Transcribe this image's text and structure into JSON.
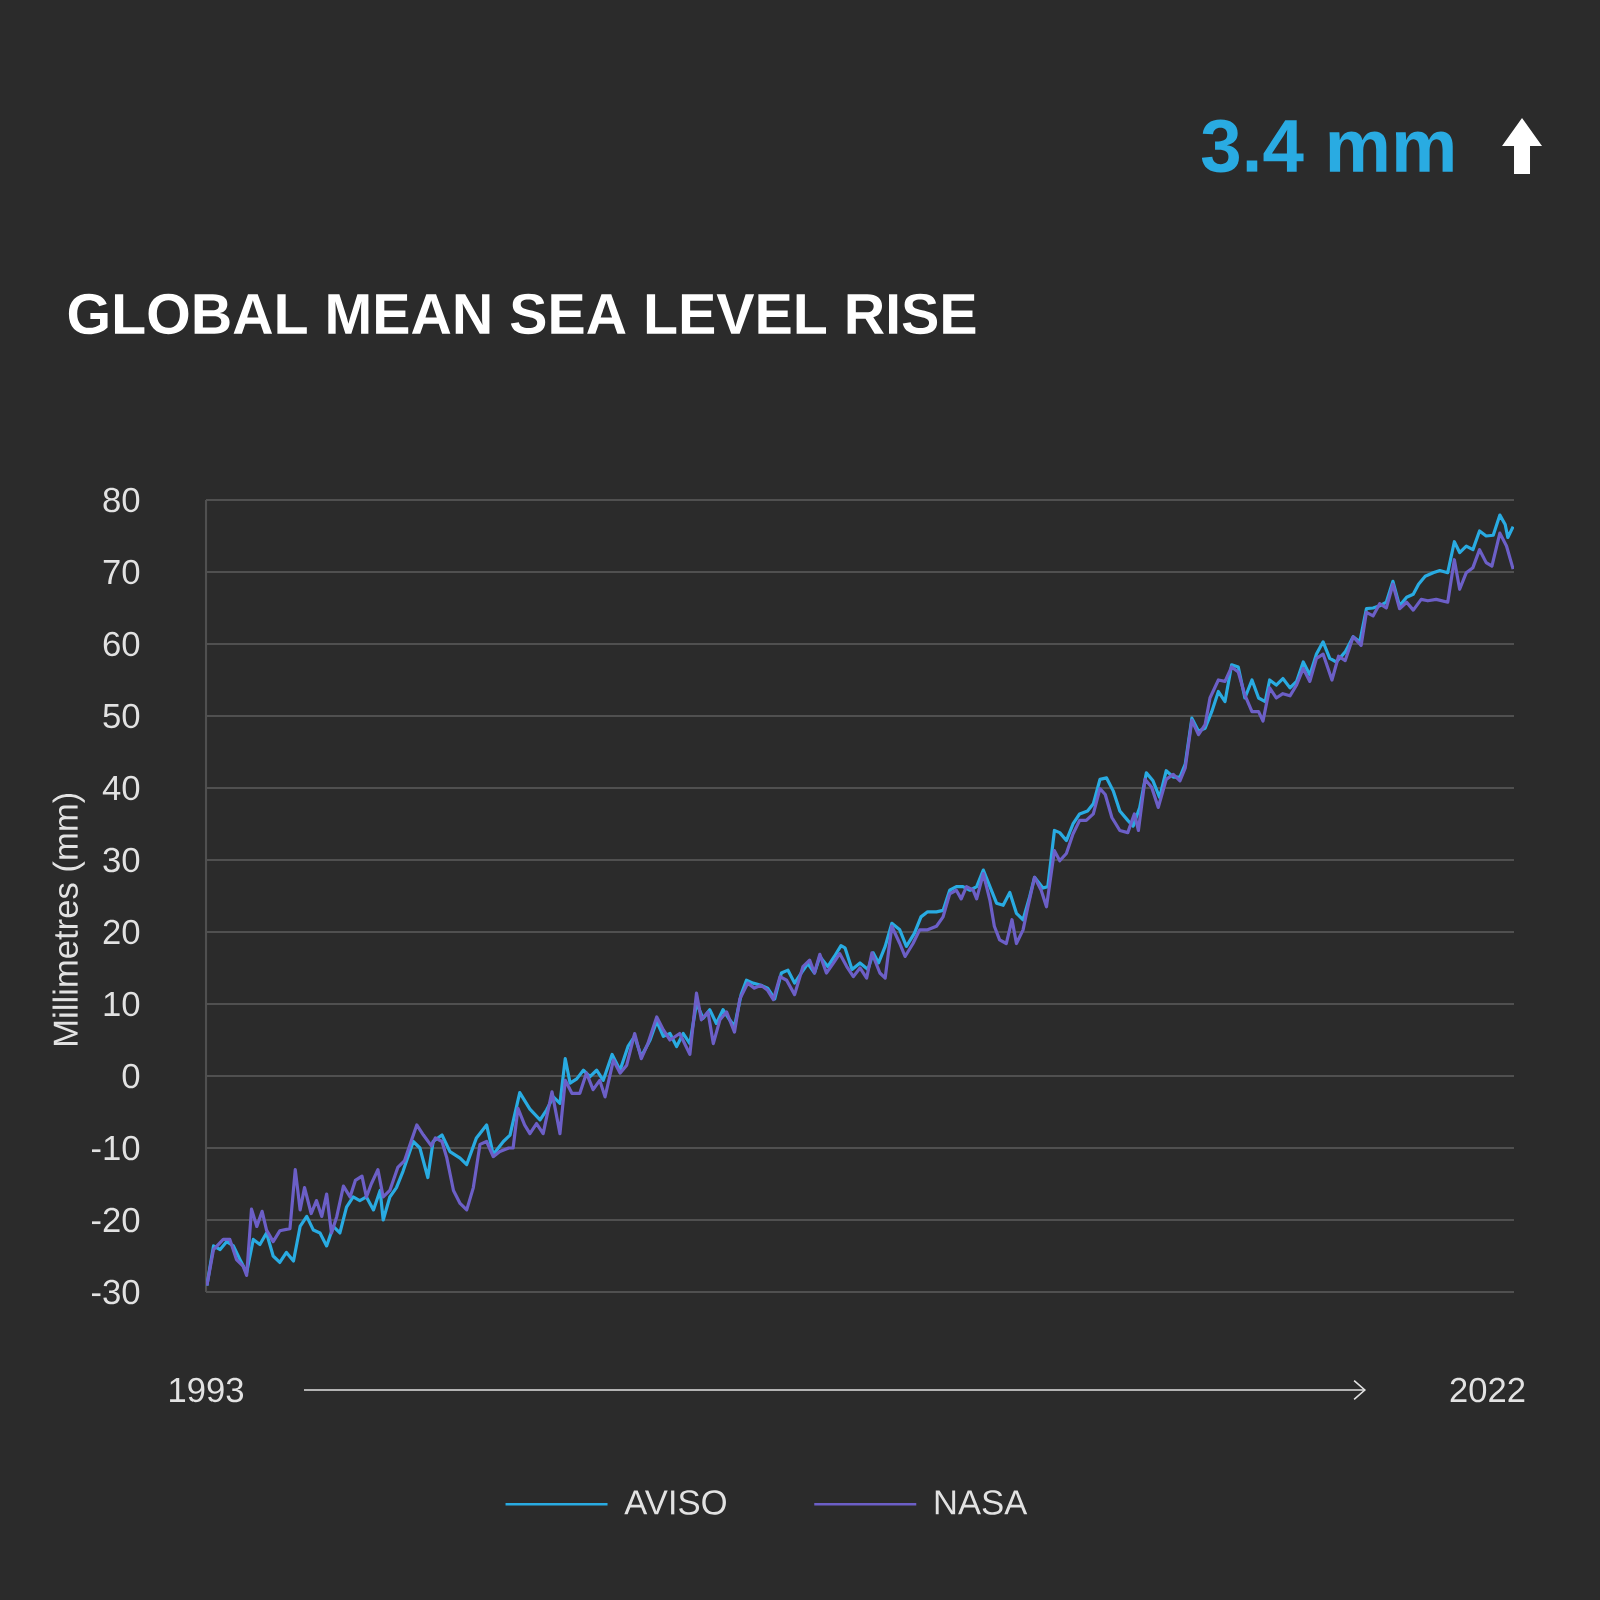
{
  "chart_data": {
    "type": "line",
    "title": "GLOBAL MEAN SEA LEVEL RISE",
    "ylabel": "Millimetres (mm)",
    "annotations": [
      "3.4 mm"
    ],
    "xlim": [
      1993,
      2022.6
    ],
    "xticks": [
      1993,
      2022
    ],
    "ylim": [
      -30,
      80
    ],
    "yticks": [
      -30,
      -20,
      -10,
      0,
      10,
      20,
      30,
      40,
      50,
      60,
      70,
      80
    ],
    "grid": "y",
    "legend": "bottom",
    "series": [
      {
        "name": "AVISO",
        "color": "#29abe2",
        "x": [
          1993.02,
          1993.17,
          1993.32,
          1993.47,
          1993.62,
          1993.77,
          1993.92,
          1994.07,
          1994.22,
          1994.37,
          1994.52,
          1994.67,
          1994.82,
          1994.98,
          1995.13,
          1995.28,
          1995.43,
          1995.58,
          1995.73,
          1995.88,
          1996.03,
          1996.18,
          1996.33,
          1996.48,
          1996.63,
          1996.79,
          1996.94,
          1997.01,
          1997.16,
          1997.31,
          1997.46,
          1997.69,
          1997.84,
          1998.02,
          1998.14,
          1998.34,
          1998.52,
          1998.75,
          1998.9,
          1999.12,
          1999.35,
          1999.5,
          1999.73,
          1999.88,
          2000.1,
          2000.33,
          2000.56,
          2000.71,
          2000.86,
          2001.01,
          2001.13,
          2001.24,
          2001.39,
          2001.54,
          2001.69,
          2001.84,
          2001.99,
          2002.19,
          2002.37,
          2002.55,
          2002.7,
          2002.85,
          2003.05,
          2003.2,
          2003.35,
          2003.5,
          2003.65,
          2003.8,
          2003.95,
          2004.1,
          2004.25,
          2004.4,
          2004.55,
          2004.7,
          2004.85,
          2004.96,
          2005.11,
          2005.23,
          2005.38,
          2005.56,
          2005.71,
          2005.87,
          2006.02,
          2006.17,
          2006.32,
          2006.47,
          2006.62,
          2006.77,
          2006.89,
          2007.07,
          2007.22,
          2007.37,
          2007.46,
          2007.62,
          2007.8,
          2007.98,
          2008.1,
          2008.22,
          2008.37,
          2008.52,
          2008.7,
          2008.85,
          2009.03,
          2009.18,
          2009.33,
          2009.53,
          2009.68,
          2009.83,
          2009.98,
          2010.13,
          2010.29,
          2010.44,
          2010.59,
          2010.74,
          2010.89,
          2011.04,
          2011.19,
          2011.34,
          2011.49,
          2011.64,
          2011.75,
          2011.94,
          2012.05,
          2012.2,
          2012.32,
          2012.47,
          2012.62,
          2012.77,
          2012.95,
          2013.08,
          2013.23,
          2013.38,
          2013.53,
          2013.68,
          2013.86,
          2013.98,
          2014.13,
          2014.28,
          2014.43,
          2014.58,
          2014.73,
          2014.89,
          2015.04,
          2015.16,
          2015.31,
          2015.46,
          2015.61,
          2015.76,
          2015.91,
          2016.06,
          2016.21,
          2016.36,
          2016.51,
          2016.67,
          2016.82,
          2016.97,
          2017.07,
          2017.22,
          2017.37,
          2017.53,
          2017.68,
          2017.83,
          2017.98,
          2018.13,
          2018.28,
          2018.43,
          2018.58,
          2018.78,
          2018.96,
          2019.11,
          2019.26,
          2019.41,
          2019.56,
          2019.71,
          2019.86,
          2020.01,
          2020.17,
          2020.32,
          2020.44,
          2020.59,
          2020.77,
          2020.92,
          2021.1,
          2021.25,
          2021.37,
          2021.52,
          2021.67,
          2021.82,
          2021.97,
          2022.13,
          2022.28,
          2022.4,
          2022.46,
          2022.58
        ],
        "values": [
          -29.1,
          -23.6,
          -24.1,
          -23.0,
          -23.6,
          -25.5,
          -27.3,
          -22.7,
          -23.4,
          -21.8,
          -25.0,
          -25.9,
          -24.5,
          -25.7,
          -20.9,
          -19.5,
          -21.4,
          -21.8,
          -23.6,
          -20.9,
          -21.8,
          -18.2,
          -16.8,
          -17.3,
          -16.8,
          -18.6,
          -15.9,
          -20.0,
          -16.8,
          -15.5,
          -13.2,
          -9.1,
          -10.0,
          -14.1,
          -9.1,
          -8.2,
          -10.5,
          -11.4,
          -12.3,
          -8.6,
          -6.8,
          -10.9,
          -9.1,
          -8.2,
          -2.3,
          -4.6,
          -6.1,
          -4.7,
          -2.9,
          -3.8,
          2.4,
          -1.0,
          -0.4,
          0.8,
          -0.1,
          0.8,
          -0.6,
          3.0,
          0.8,
          4.1,
          5.5,
          2.7,
          5.0,
          7.6,
          5.5,
          5.9,
          4.1,
          5.9,
          4.5,
          10.1,
          8.0,
          9.2,
          7.3,
          9.2,
          7.8,
          6.9,
          11.3,
          13.3,
          12.9,
          12.6,
          12.2,
          10.7,
          14.3,
          14.7,
          12.9,
          14.3,
          15.6,
          14.3,
          16.6,
          15.2,
          16.6,
          18.1,
          17.8,
          14.8,
          15.7,
          14.8,
          17.1,
          15.7,
          18.0,
          21.2,
          20.3,
          18.0,
          19.8,
          22.1,
          22.8,
          22.8,
          23.0,
          25.8,
          26.3,
          26.3,
          25.8,
          26.3,
          28.6,
          26.3,
          24.0,
          23.7,
          25.5,
          22.6,
          21.7,
          24.9,
          27.6,
          26.1,
          26.3,
          34.1,
          33.8,
          32.7,
          35.0,
          36.4,
          36.8,
          37.8,
          41.2,
          41.4,
          39.6,
          36.8,
          35.5,
          34.7,
          37.3,
          42.1,
          41.0,
          38.7,
          42.4,
          41.5,
          41.5,
          43.3,
          49.7,
          47.9,
          48.3,
          50.6,
          53.4,
          52.0,
          57.1,
          56.8,
          52.5,
          55.0,
          52.5,
          52.0,
          55.0,
          54.3,
          55.2,
          53.9,
          54.8,
          57.5,
          55.7,
          58.6,
          60.3,
          58.0,
          57.5,
          58.9,
          61.0,
          60.3,
          64.9,
          65.0,
          65.3,
          65.8,
          68.7,
          65.3,
          66.5,
          66.9,
          68.3,
          69.4,
          69.9,
          70.2,
          69.9,
          74.2,
          72.7,
          73.6,
          73.1,
          75.7,
          75.0,
          75.1,
          77.9,
          76.6,
          74.8,
          76.3
        ]
      },
      {
        "name": "NASA",
        "color": "#6c5fc7",
        "x": [
          1993.02,
          1993.17,
          1993.39,
          1993.54,
          1993.69,
          1993.84,
          1993.92,
          1994.03,
          1994.15,
          1994.27,
          1994.37,
          1994.52,
          1994.67,
          1994.9,
          1995.02,
          1995.13,
          1995.23,
          1995.38,
          1995.5,
          1995.62,
          1995.73,
          1995.84,
          1995.96,
          1996.11,
          1996.26,
          1996.38,
          1996.53,
          1996.63,
          1996.74,
          1996.89,
          1997.01,
          1997.16,
          1997.34,
          1997.49,
          1997.59,
          1997.77,
          1997.92,
          1998.1,
          1998.19,
          1998.34,
          1998.45,
          1998.6,
          1998.75,
          1998.9,
          1999.05,
          1999.2,
          1999.35,
          1999.5,
          1999.65,
          1999.85,
          1999.95,
          2000.06,
          2000.21,
          2000.33,
          2000.48,
          2000.63,
          2000.83,
          2001.01,
          2001.13,
          2001.28,
          2001.46,
          2001.61,
          2001.76,
          2001.91,
          2002.03,
          2002.22,
          2002.37,
          2002.52,
          2002.7,
          2002.85,
          2003.0,
          2003.2,
          2003.35,
          2003.5,
          2003.72,
          2003.95,
          2004.1,
          2004.21,
          2004.36,
          2004.48,
          2004.63,
          2004.78,
          2004.96,
          2005.08,
          2005.26,
          2005.41,
          2005.56,
          2005.71,
          2005.84,
          2005.99,
          2006.14,
          2006.32,
          2006.51,
          2006.66,
          2006.77,
          2006.89,
          2007.04,
          2007.19,
          2007.34,
          2007.5,
          2007.65,
          2007.8,
          2007.95,
          2008.07,
          2008.25,
          2008.37,
          2008.52,
          2008.7,
          2008.82,
          2009.0,
          2009.15,
          2009.33,
          2009.53,
          2009.68,
          2009.83,
          2009.98,
          2010.09,
          2010.21,
          2010.36,
          2010.44,
          2010.59,
          2010.74,
          2010.84,
          2010.96,
          2011.11,
          2011.24,
          2011.34,
          2011.49,
          2011.6,
          2011.75,
          2011.9,
          2012.02,
          2012.2,
          2012.32,
          2012.47,
          2012.62,
          2012.77,
          2012.92,
          2013.08,
          2013.23,
          2013.35,
          2013.5,
          2013.68,
          2013.86,
          2014.01,
          2014.1,
          2014.25,
          2014.4,
          2014.55,
          2014.73,
          2014.89,
          2015.04,
          2015.16,
          2015.31,
          2015.46,
          2015.61,
          2015.72,
          2015.91,
          2016.06,
          2016.21,
          2016.36,
          2016.51,
          2016.67,
          2016.82,
          2016.92,
          2017.07,
          2017.22,
          2017.37,
          2017.53,
          2017.68,
          2017.83,
          2017.98,
          2018.13,
          2018.28,
          2018.48,
          2018.63,
          2018.78,
          2018.96,
          2019.14,
          2019.26,
          2019.41,
          2019.56,
          2019.71,
          2019.86,
          2020.01,
          2020.17,
          2020.32,
          2020.5,
          2020.65,
          2020.84,
          2021.1,
          2021.25,
          2021.37,
          2021.52,
          2021.67,
          2021.82,
          2021.97,
          2022.1,
          2022.28,
          2022.43,
          2022.58
        ],
        "values": [
          -29.1,
          -24.1,
          -22.7,
          -22.7,
          -25.5,
          -26.4,
          -27.7,
          -18.5,
          -20.9,
          -18.8,
          -21.4,
          -23.0,
          -21.5,
          -21.2,
          -13.0,
          -18.6,
          -15.5,
          -19.1,
          -17.3,
          -19.5,
          -16.4,
          -21.8,
          -19.5,
          -15.3,
          -16.8,
          -14.5,
          -13.9,
          -16.8,
          -15.0,
          -13.0,
          -16.8,
          -15.9,
          -12.7,
          -11.8,
          -10.0,
          -6.8,
          -8.2,
          -9.7,
          -8.6,
          -9.1,
          -11.4,
          -15.9,
          -17.7,
          -18.6,
          -15.5,
          -9.5,
          -9.1,
          -11.2,
          -10.5,
          -10.0,
          -10.0,
          -4.5,
          -6.8,
          -8.0,
          -6.6,
          -8.0,
          -2.2,
          -8.0,
          -0.6,
          -2.4,
          -2.4,
          0.4,
          -1.9,
          -0.6,
          -2.9,
          2.2,
          0.4,
          1.5,
          5.9,
          2.4,
          4.5,
          8.2,
          6.4,
          5.0,
          5.9,
          3.0,
          11.5,
          7.8,
          8.9,
          4.5,
          7.8,
          8.9,
          6.1,
          10.7,
          12.9,
          12.2,
          12.6,
          11.9,
          10.6,
          13.8,
          13.3,
          11.3,
          15.2,
          16.1,
          14.3,
          16.9,
          14.3,
          15.6,
          17.0,
          15.2,
          13.8,
          15.0,
          13.6,
          17.1,
          14.3,
          13.6,
          20.8,
          18.4,
          16.6,
          18.4,
          20.3,
          20.3,
          20.8,
          22.1,
          25.3,
          25.8,
          24.6,
          26.3,
          25.8,
          24.6,
          28.1,
          24.4,
          20.8,
          18.9,
          18.4,
          21.7,
          18.4,
          20.3,
          23.5,
          27.6,
          25.8,
          23.5,
          31.3,
          29.9,
          30.9,
          33.6,
          35.5,
          35.5,
          36.4,
          39.9,
          39.1,
          35.9,
          34.1,
          33.8,
          36.4,
          34.1,
          41.2,
          40.1,
          37.3,
          41.2,
          41.9,
          41.0,
          42.8,
          49.4,
          47.4,
          48.8,
          52.5,
          55.0,
          54.8,
          56.8,
          56.1,
          52.9,
          50.6,
          50.6,
          49.3,
          53.9,
          52.5,
          53.1,
          52.8,
          54.3,
          56.6,
          54.8,
          58.0,
          58.6,
          55.0,
          58.3,
          57.7,
          61.0,
          59.8,
          64.4,
          63.9,
          65.6,
          65.0,
          68.3,
          64.9,
          65.8,
          64.7,
          66.2,
          66.0,
          66.2,
          65.8,
          71.7,
          67.6,
          69.9,
          70.6,
          73.1,
          71.3,
          70.8,
          75.4,
          73.6,
          70.4
        ]
      }
    ]
  }
}
